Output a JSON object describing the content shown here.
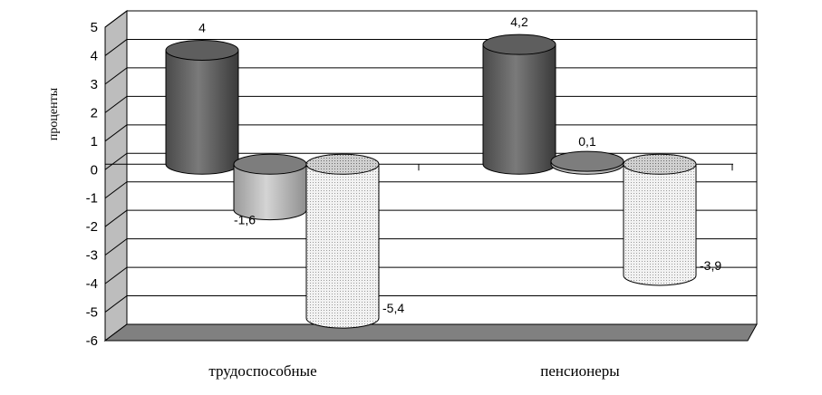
{
  "chart_data": {
    "type": "bar",
    "style": "3d-cylinder",
    "ylabel": "проценты",
    "ylim": [
      -6,
      5
    ],
    "yticks": [
      5,
      4,
      3,
      2,
      1,
      0,
      -1,
      -2,
      -3,
      -4,
      -5,
      -6
    ],
    "grid": true,
    "legend": "none",
    "categories": [
      "трудоспособные",
      "пенсионеры"
    ],
    "series": [
      {
        "values": [
          4,
          4.2
        ],
        "color": "#666666"
      },
      {
        "values": [
          -1.6,
          0.1
        ],
        "color": "#b8b8b8"
      },
      {
        "values": [
          -5.4,
          -3.9
        ],
        "color": "#e6e6e6"
      }
    ],
    "data_labels": [
      [
        "4",
        "4,2"
      ],
      [
        "-1,6",
        "0,1"
      ],
      [
        "-5,4",
        "-3,9"
      ]
    ],
    "floor_color": "#808080",
    "wall_color": "#bdbdbd"
  }
}
